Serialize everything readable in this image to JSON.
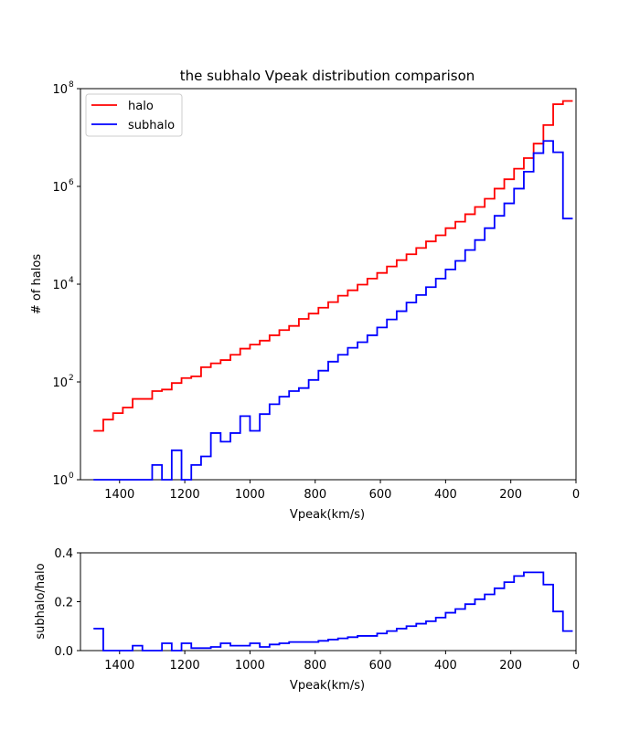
{
  "chart_data": [
    {
      "type": "line",
      "style": "step",
      "title": "the subhalo Vpeak distribution comparison",
      "xlabel": "Vpeak(km/s)",
      "ylabel": "# of halos",
      "xlim": [
        1520,
        0
      ],
      "ylim": [
        1,
        100000000
      ],
      "yscale": "log",
      "xticks": [
        1400,
        1200,
        1000,
        800,
        600,
        400,
        200,
        0
      ],
      "xtick_labels": [
        "1400",
        "1200",
        "1000",
        "800",
        "600",
        "400",
        "200",
        "0"
      ],
      "yticks": [
        1,
        100,
        10000,
        1000000,
        100000000
      ],
      "ytick_labels": [
        {
          "base": "10",
          "exp": "0"
        },
        {
          "base": "10",
          "exp": "2"
        },
        {
          "base": "10",
          "exp": "4"
        },
        {
          "base": "10",
          "exp": "6"
        },
        {
          "base": "10",
          "exp": "8"
        }
      ],
      "legend_position": "upper-left",
      "bin_edges": [
        1480,
        1450,
        1420,
        1390,
        1360,
        1330,
        1300,
        1270,
        1240,
        1210,
        1180,
        1150,
        1120,
        1090,
        1060,
        1030,
        1000,
        970,
        940,
        910,
        880,
        850,
        820,
        790,
        760,
        730,
        700,
        670,
        640,
        610,
        580,
        550,
        520,
        490,
        460,
        430,
        400,
        370,
        340,
        310,
        280,
        250,
        220,
        190,
        160,
        130,
        100,
        70,
        40
      ],
      "series": [
        {
          "name": "halo",
          "color": "#ff0000",
          "values": [
            10,
            17,
            23,
            30,
            45,
            45,
            65,
            70,
            95,
            120,
            130,
            200,
            240,
            280,
            360,
            480,
            580,
            700,
            900,
            1150,
            1400,
            1950,
            2500,
            3300,
            4300,
            5800,
            7500,
            9800,
            13000,
            17000,
            23000,
            31000,
            41000,
            55000,
            75000,
            100000,
            140000,
            190000,
            270000,
            380000,
            560000,
            900000,
            1400000,
            2300000,
            3800000,
            7500000,
            18000000,
            48000000,
            56000000
          ]
        },
        {
          "name": "subhalo",
          "color": "#0000ff",
          "values": [
            1,
            0,
            0,
            1,
            0,
            0,
            2,
            0,
            4,
            1,
            2,
            3,
            9,
            6,
            9,
            20,
            10,
            22,
            35,
            50,
            65,
            75,
            110,
            170,
            260,
            360,
            500,
            650,
            900,
            1300,
            1900,
            2800,
            4200,
            6000,
            8700,
            13000,
            20000,
            30000,
            50000,
            80000,
            140000,
            250000,
            450000,
            900000,
            2000000,
            4800000,
            8500000,
            5000000,
            220000
          ]
        }
      ]
    },
    {
      "type": "line",
      "style": "step",
      "title": "",
      "xlabel": "Vpeak(km/s)",
      "ylabel": "subhalo/halo",
      "xlim": [
        1520,
        0
      ],
      "ylim": [
        0,
        0.4
      ],
      "xticks": [
        1400,
        1200,
        1000,
        800,
        600,
        400,
        200,
        0
      ],
      "xtick_labels": [
        "1400",
        "1200",
        "1000",
        "800",
        "600",
        "400",
        "200",
        "0"
      ],
      "yticks": [
        0,
        0.2,
        0.4
      ],
      "ytick_labels": [
        "0.0",
        "0.2",
        "0.4"
      ],
      "bin_edges": [
        1480,
        1450,
        1420,
        1390,
        1360,
        1330,
        1300,
        1270,
        1240,
        1210,
        1180,
        1150,
        1120,
        1090,
        1060,
        1030,
        1000,
        970,
        940,
        910,
        880,
        850,
        820,
        790,
        760,
        730,
        700,
        670,
        640,
        610,
        580,
        550,
        520,
        490,
        460,
        430,
        400,
        370,
        340,
        310,
        280,
        250,
        220,
        190,
        160,
        130,
        100,
        70,
        40
      ],
      "series": [
        {
          "name": "subhalo/halo",
          "color": "#0000ff",
          "values": [
            0.09,
            0,
            0,
            0,
            0.02,
            0,
            0,
            0.03,
            0,
            0.03,
            0.01,
            0.01,
            0.015,
            0.03,
            0.02,
            0.02,
            0.03,
            0.015,
            0.025,
            0.03,
            0.035,
            0.035,
            0.035,
            0.04,
            0.045,
            0.05,
            0.055,
            0.06,
            0.06,
            0.07,
            0.08,
            0.09,
            0.1,
            0.11,
            0.12,
            0.135,
            0.155,
            0.17,
            0.19,
            0.21,
            0.23,
            0.255,
            0.28,
            0.305,
            0.32,
            0.32,
            0.27,
            0.16,
            0.08
          ]
        }
      ]
    }
  ]
}
